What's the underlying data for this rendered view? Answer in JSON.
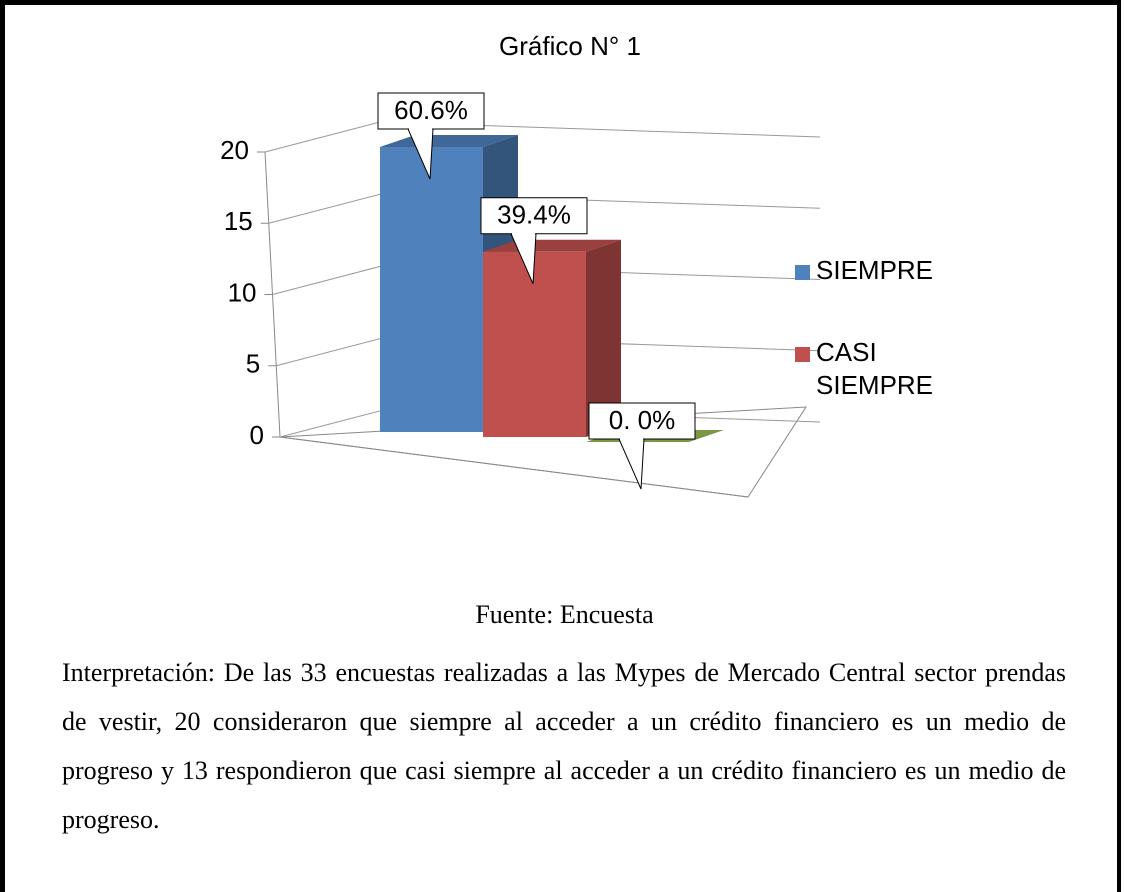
{
  "chart_data": {
    "type": "bar3d",
    "title": "Gráfico N° 1",
    "series": [
      {
        "name": "SIEMPRE",
        "color": "#4f81bd",
        "values": [
          20
        ]
      },
      {
        "name": "CASI SIEMPRE",
        "color": "#c0504d",
        "values": [
          13
        ]
      },
      {
        "name": null,
        "color": "#9bbb59",
        "values": [
          0
        ]
      }
    ],
    "data_labels": [
      "60.6%",
      "39.4%",
      "0. 0%"
    ],
    "ylim": [
      0,
      20
    ],
    "yticks": [
      0,
      5,
      10,
      15,
      20
    ],
    "grid": true
  },
  "document": {
    "source": "Fuente: Encuesta",
    "interpretation": "Interpretación: De las 33 encuestas realizadas a las Mypes de Mercado Central sector prendas de vestir, 20 consideraron que  siempre al acceder a un crédito financiero es un medio de progreso y 13 respondieron que casi siempre al acceder a un crédito financiero es un medio de progreso."
  }
}
